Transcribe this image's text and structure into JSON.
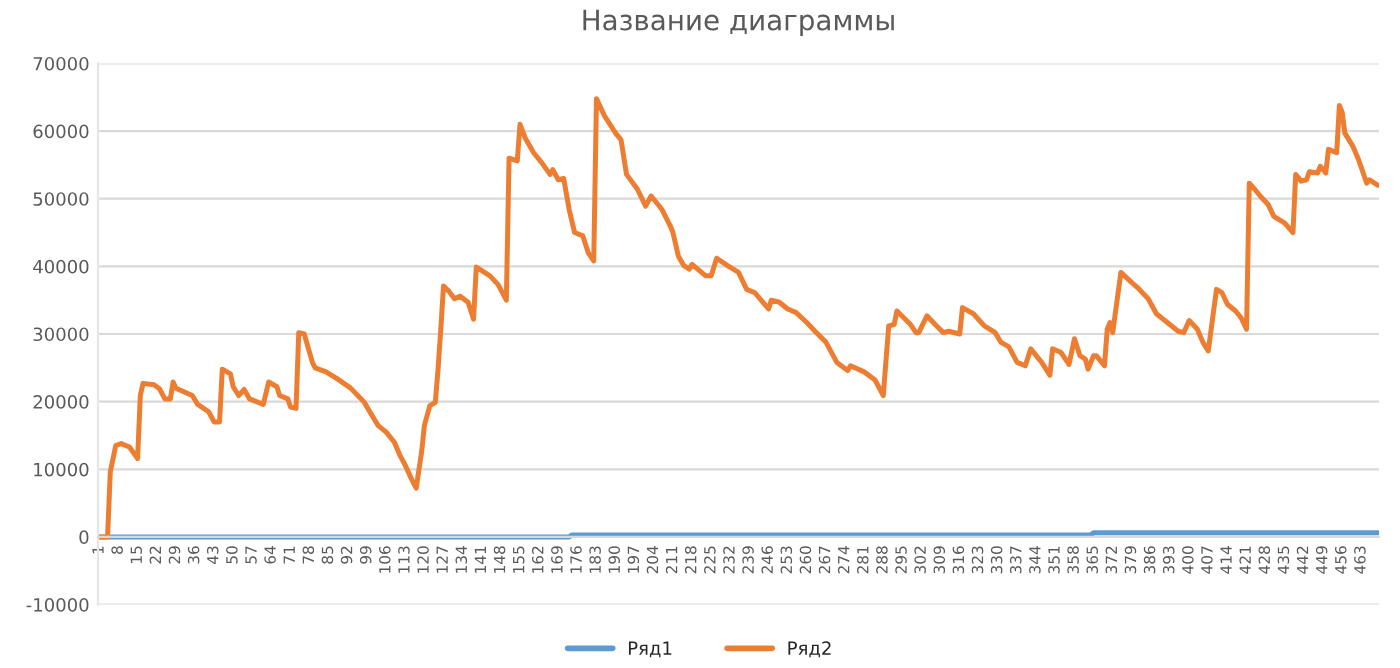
{
  "chart_data": {
    "type": "line",
    "title": "Название диаграммы",
    "xlim": [
      0.5,
      469.5
    ],
    "xticks": [
      1,
      8,
      15,
      22,
      29,
      36,
      43,
      50,
      57,
      64,
      71,
      78,
      85,
      92,
      99,
      106,
      113,
      120,
      127,
      134,
      141,
      148,
      155,
      162,
      169,
      176,
      183,
      190,
      197,
      204,
      211,
      218,
      225,
      232,
      239,
      246,
      253,
      260,
      267,
      274,
      281,
      288,
      295,
      302,
      309,
      316,
      323,
      330,
      337,
      344,
      351,
      358,
      365,
      372,
      379,
      386,
      393,
      400,
      407,
      414,
      421,
      428,
      435,
      442,
      449,
      456,
      463
    ],
    "ylim": [
      -10000,
      70000
    ],
    "yticks": [
      -10000,
      0,
      10000,
      20000,
      30000,
      40000,
      50000,
      60000,
      70000
    ],
    "grid": "y",
    "legend": "bottom",
    "series": [
      {
        "name": "Ряд1",
        "color": "#5b9bd5",
        "x": [
          1,
          173,
          174,
          364,
          365,
          469
        ],
        "values": [
          0,
          0,
          300,
          300,
          600,
          600
        ]
      },
      {
        "name": "Ряд2",
        "color": "#ed7d31",
        "x": [
          1,
          4,
          5,
          7,
          9,
          12,
          15,
          16,
          17,
          21,
          23,
          25,
          27,
          28,
          29,
          35,
          37,
          41,
          43,
          45,
          46,
          49,
          50,
          52,
          54,
          56,
          61,
          63,
          66,
          67,
          70,
          71,
          73,
          74,
          76,
          79,
          80,
          84,
          88,
          93,
          98,
          100,
          103,
          106,
          109,
          111,
          113,
          115,
          117,
          119,
          120,
          122,
          124,
          125,
          126,
          127,
          129,
          131,
          133,
          136,
          138,
          139,
          142,
          144,
          147,
          150,
          151,
          154,
          155,
          157,
          160,
          163,
          166,
          167,
          169,
          171,
          173,
          175,
          178,
          180,
          182,
          183,
          186,
          190,
          192,
          194,
          198,
          201,
          203,
          207,
          210,
          211,
          213,
          215,
          217,
          218,
          223,
          225,
          227,
          231,
          235,
          238,
          241,
          246,
          247,
          250,
          253,
          256,
          260,
          263,
          267,
          271,
          275,
          276,
          281,
          285,
          288,
          290,
          292,
          293,
          298,
          300,
          301,
          304,
          307,
          310,
          312,
          316,
          317,
          321,
          325,
          329,
          331,
          334,
          337,
          340,
          342,
          346,
          349,
          350,
          353,
          356,
          358,
          360,
          362,
          363,
          365,
          366,
          369,
          370,
          371,
          372,
          375,
          379,
          381,
          385,
          388,
          392,
          396,
          398,
          400,
          403,
          405,
          407,
          410,
          412,
          414,
          417,
          419,
          421,
          422,
          424,
          426,
          429,
          431,
          435,
          438,
          439,
          441,
          443,
          444,
          447,
          448,
          450,
          451,
          454,
          455,
          456,
          457,
          460,
          462,
          465,
          466,
          469
        ],
        "values": [
          0,
          0,
          9600,
          13500,
          13800,
          13300,
          11600,
          20900,
          22700,
          22500,
          21900,
          20400,
          20400,
          22900,
          22000,
          20900,
          19600,
          18500,
          17000,
          17000,
          24800,
          24100,
          22200,
          20900,
          21800,
          20400,
          19600,
          22900,
          22200,
          20900,
          20400,
          19200,
          19000,
          30200,
          30000,
          25800,
          25000,
          24400,
          23400,
          22000,
          19900,
          18500,
          16500,
          15500,
          14000,
          12100,
          10600,
          8800,
          7200,
          12600,
          16500,
          19400,
          19900,
          24800,
          30700,
          37100,
          36300,
          35200,
          35600,
          34700,
          32200,
          39900,
          39100,
          38600,
          37300,
          35000,
          56000,
          55600,
          61000,
          58900,
          56800,
          55300,
          53600,
          54300,
          52800,
          53000,
          48400,
          45000,
          44500,
          42000,
          40800,
          64800,
          62200,
          59700,
          58700,
          53600,
          51400,
          48900,
          50400,
          48400,
          46000,
          45000,
          41500,
          40100,
          39600,
          40300,
          38600,
          38600,
          41200,
          40100,
          39100,
          36600,
          36100,
          33700,
          35000,
          34700,
          33700,
          33200,
          31700,
          30400,
          28800,
          25800,
          24600,
          25300,
          24400,
          23200,
          20900,
          31200,
          31400,
          33400,
          31400,
          30200,
          30200,
          32700,
          31400,
          30200,
          30400,
          30000,
          33900,
          33000,
          31200,
          30200,
          28800,
          28100,
          25800,
          25300,
          27800,
          25800,
          23900,
          27800,
          27300,
          25500,
          29300,
          26800,
          26300,
          24800,
          26800,
          26800,
          25300,
          30700,
          31700,
          30200,
          39100,
          37600,
          36900,
          35200,
          33000,
          31700,
          30400,
          30200,
          32000,
          30700,
          28800,
          27500,
          36600,
          36100,
          34400,
          33400,
          32400,
          30700,
          52300,
          51400,
          50400,
          49100,
          47400,
          46400,
          45000,
          53600,
          52600,
          52800,
          54000,
          53800,
          54800,
          53800,
          57300,
          56800,
          63800,
          62800,
          59700,
          57700,
          55800,
          52300,
          52800,
          52000
        ]
      }
    ]
  }
}
